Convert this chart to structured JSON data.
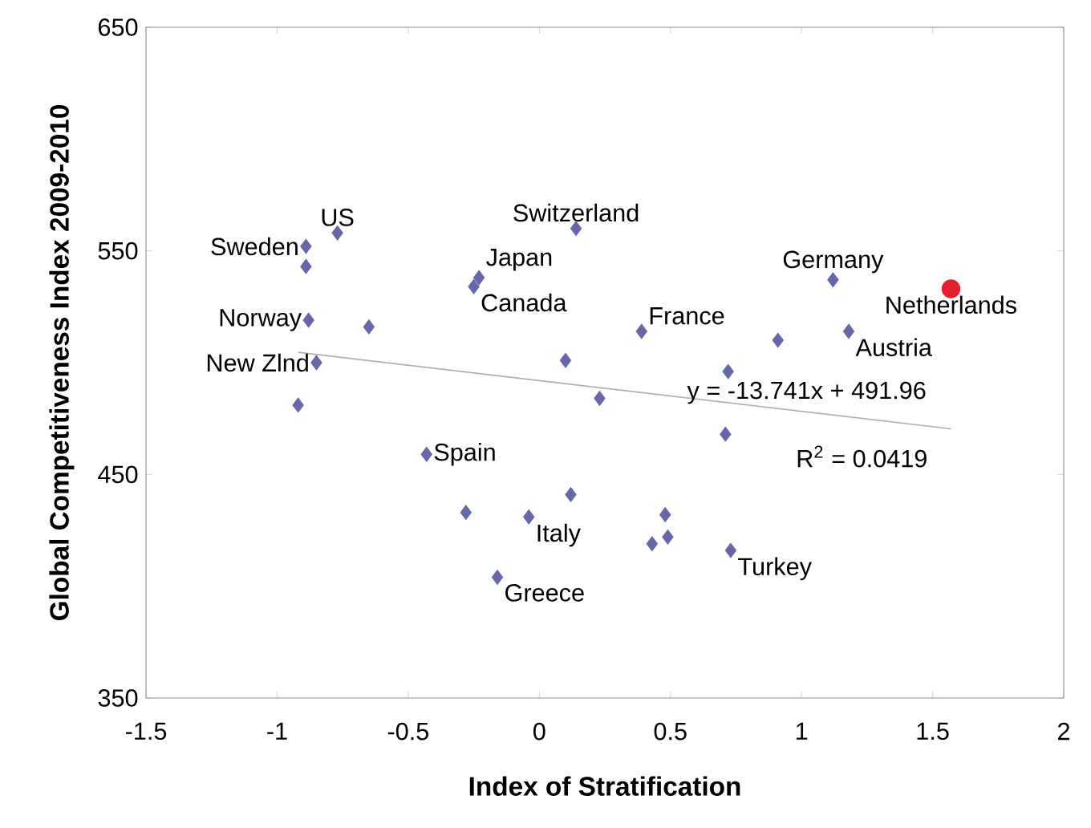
{
  "chart_data": {
    "type": "scatter",
    "xlabel": "Index of Stratification",
    "ylabel": "Global Competitiveness Index 2009-2010",
    "xlim": [
      -1.5,
      2
    ],
    "xticks": [
      -1.5,
      -1,
      -0.5,
      0,
      0.5,
      1,
      1.5,
      2
    ],
    "ylim": [
      350,
      650
    ],
    "yticks": [
      350,
      450,
      550,
      650
    ],
    "series": [
      {
        "color": "#6666a8",
        "marker": "diamond",
        "x": [
          -0.77,
          -0.89,
          -0.89,
          0.14,
          -0.23,
          -0.25,
          -0.88,
          -0.65,
          -0.85,
          -0.92,
          0.1,
          0.23,
          0.39,
          -0.43,
          1.12,
          0.91,
          1.18,
          0.72,
          0.71,
          -0.28,
          -0.04,
          0.12,
          0.48,
          0.43,
          0.49,
          0.73,
          -0.16
        ],
        "values": [
          558,
          552,
          543,
          560,
          538,
          534,
          519,
          516,
          500,
          481,
          501,
          484,
          514,
          459,
          537,
          510,
          514,
          496,
          468,
          433,
          431,
          441,
          432,
          419,
          422,
          416,
          404
        ]
      },
      {
        "color": "#e3202e",
        "marker": "circle",
        "x": [
          1.57
        ],
        "values": [
          533
        ]
      },
      {
        "type": "line",
        "color": "#b0b0b0",
        "x": [
          -0.92,
          1.57
        ],
        "values": [
          504.6,
          470.4
        ]
      }
    ],
    "annotations": [
      {
        "text": "US",
        "x": -0.77,
        "y": 558
      },
      {
        "text": "Sweden",
        "x": -0.89,
        "y": 552
      },
      {
        "text": "Switzerland",
        "x": 0.14,
        "y": 560
      },
      {
        "text": "Japan",
        "x": -0.23,
        "y": 538
      },
      {
        "text": "Canada",
        "x": -0.25,
        "y": 534
      },
      {
        "text": "Norway",
        "x": -0.88,
        "y": 519
      },
      {
        "text": "New Zlnd",
        "x": -0.85,
        "y": 500
      },
      {
        "text": "France",
        "x": 0.39,
        "y": 514
      },
      {
        "text": "Germany",
        "x": 1.12,
        "y": 537
      },
      {
        "text": "Netherlands",
        "x": 1.57,
        "y": 533
      },
      {
        "text": "Austria",
        "x": 1.18,
        "y": 514
      },
      {
        "text": "Spain",
        "x": -0.43,
        "y": 459
      },
      {
        "text": "Italy",
        "x": -0.04,
        "y": 431
      },
      {
        "text": "Greece",
        "x": -0.16,
        "y": 404
      },
      {
        "text": "Turkey",
        "x": 0.73,
        "y": 416
      },
      "y = -13.741x + 491.96",
      "R$^{2}$ = 0.0419"
    ]
  }
}
